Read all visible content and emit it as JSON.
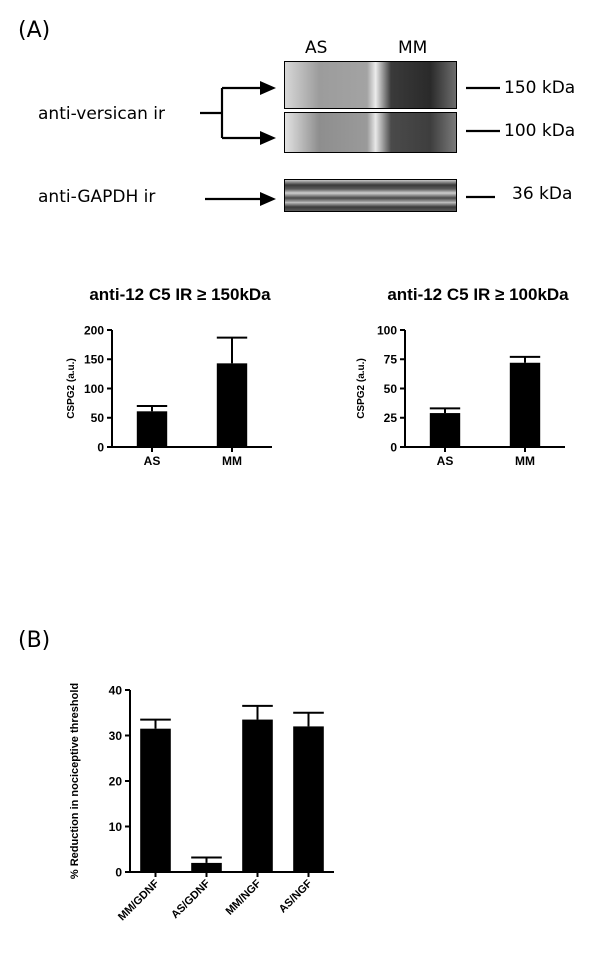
{
  "panel_a": {
    "label": "(A)",
    "lanes": [
      "AS",
      "MM"
    ],
    "left_labels": {
      "versican": "anti-versican ir",
      "gapdh": "anti-GAPDH ir"
    },
    "size_markers": [
      "150 kDa",
      "100 kDa",
      "36 kDa"
    ]
  },
  "panel_b": {
    "label": "(B)"
  },
  "chart_data": [
    {
      "type": "bar",
      "title": "anti-12 C5 IR ≥ 150kDa",
      "ylabel": "CSPG2  (a.u.)",
      "xlabel": "",
      "categories": [
        "AS",
        "MM"
      ],
      "values": [
        61,
        143
      ],
      "errors": [
        9,
        44
      ],
      "ylim": [
        0,
        200
      ],
      "yticks": [
        0,
        50,
        100,
        150,
        200
      ],
      "grid": false,
      "bar_color": "#000000"
    },
    {
      "type": "bar",
      "title": "anti-12 C5 IR ≥ 100kDa",
      "ylabel": "CSPG2  (a.u.)",
      "xlabel": "",
      "categories": [
        "AS",
        "MM"
      ],
      "values": [
        29,
        72
      ],
      "errors": [
        4,
        5
      ],
      "ylim": [
        0,
        100
      ],
      "yticks": [
        0,
        25,
        50,
        75,
        100
      ],
      "grid": false,
      "bar_color": "#000000"
    },
    {
      "type": "bar",
      "title": "",
      "ylabel": "% Reduction in nociceptive threshold",
      "xlabel": "",
      "categories": [
        "MM/GDNF",
        "AS/GDNF",
        "MM/NGF",
        "AS/NGF"
      ],
      "values": [
        31.5,
        2.0,
        33.5,
        32.0
      ],
      "errors": [
        2.0,
        1.2,
        3.0,
        3.0
      ],
      "ylim": [
        0,
        40
      ],
      "yticks": [
        0,
        10,
        20,
        30,
        40
      ],
      "grid": false,
      "bar_color": "#000000"
    }
  ]
}
